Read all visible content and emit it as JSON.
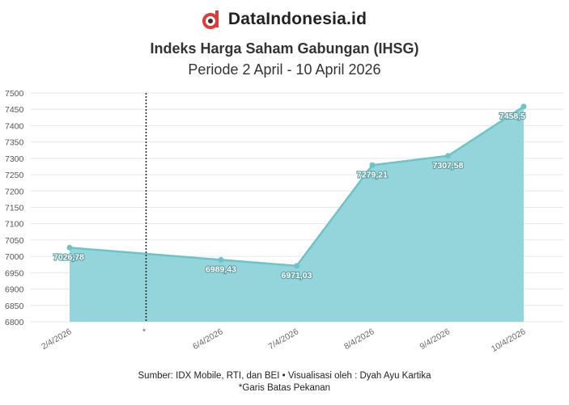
{
  "brand": {
    "name": "DataIndonesia.id",
    "logo_icon": "dataindonesia-logo-icon",
    "accent": "#e03a3a"
  },
  "chart_data": {
    "type": "area",
    "title": "Indeks Harga Saham Gabungan (IHSG)",
    "subtitle": "Periode 2 April - 10 April 2026",
    "categories": [
      "2/4/2026",
      "*",
      "6/4/2026",
      "7/4/2026",
      "8/4/2026",
      "9/4/2026",
      "10/4/2026"
    ],
    "series": [
      {
        "values": [
          7026.78,
          null,
          6989.43,
          6971.03,
          7279.21,
          7307.58,
          7458.5
        ],
        "value_labels": [
          "7026,78",
          "",
          "6989,43",
          "6971,03",
          "7279,21",
          "7307,58",
          "7458,5"
        ]
      }
    ],
    "yticks": [
      6800,
      6850,
      6900,
      6950,
      7000,
      7050,
      7100,
      7150,
      7200,
      7250,
      7300,
      7350,
      7400,
      7450,
      7500
    ],
    "ylim": [
      6800,
      7500
    ],
    "grid": true,
    "week_boundary_category": "*",
    "colors": {
      "fill": "#8dd3d9",
      "line": "#6cc4c8",
      "boundary": "#222222"
    }
  },
  "footer": {
    "source": "Sumber: IDX Mobile, RTI, dan BEI • Visualisasi oleh : Dyah Ayu Kartika",
    "note": "*Garis Batas Pekanan"
  }
}
